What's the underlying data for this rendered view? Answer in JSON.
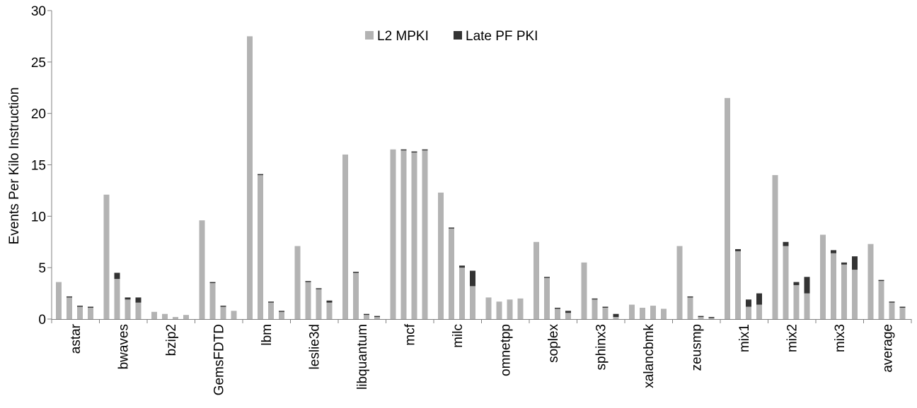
{
  "chart_data": {
    "type": "bar",
    "stacked": true,
    "title": "",
    "xlabel": "",
    "ylabel": "Events Per Kilo Instruction",
    "ylim": [
      0,
      30
    ],
    "yticks": [
      0,
      5,
      10,
      15,
      20,
      25,
      30
    ],
    "grid": false,
    "legend": "top-center",
    "bars_per_category": 4,
    "categories": [
      "astar",
      "bwaves",
      "bzip2",
      "GemsFDTD",
      "lbm",
      "leslie3d",
      "libquantum",
      "mcf",
      "milc",
      "omnetpp",
      "soplex",
      "sphinx3",
      "xalancbmk",
      "zeusmp",
      "mix1",
      "mix2",
      "mix3",
      "average"
    ],
    "series": [
      {
        "name": "L2 MPKI",
        "color": "#b3b3b3",
        "values": [
          [
            3.6,
            2.1,
            1.2,
            1.1
          ],
          [
            12.1,
            3.9,
            1.9,
            1.6
          ],
          [
            0.7,
            0.5,
            0.2,
            0.4
          ],
          [
            9.6,
            3.5,
            1.2,
            0.8
          ],
          [
            27.5,
            14.0,
            1.6,
            0.7
          ],
          [
            7.1,
            3.6,
            2.9,
            1.6
          ],
          [
            16.0,
            4.5,
            0.4,
            0.2
          ],
          [
            16.5,
            16.4,
            16.2,
            16.4
          ],
          [
            12.3,
            8.8,
            5.0,
            3.2
          ],
          [
            2.1,
            1.7,
            1.9,
            2.0
          ],
          [
            7.5,
            4.0,
            1.0,
            0.6
          ],
          [
            5.5,
            1.9,
            1.1,
            0.2
          ],
          [
            1.4,
            1.1,
            1.3,
            1.0
          ],
          [
            7.1,
            2.1,
            0.2,
            0.1
          ],
          [
            21.5,
            6.6,
            1.2,
            1.4
          ],
          [
            14.0,
            7.1,
            3.3,
            2.5
          ],
          [
            8.2,
            6.4,
            5.3,
            4.8
          ],
          [
            7.3,
            3.7,
            1.6,
            1.1
          ]
        ]
      },
      {
        "name": "Late PF PKI",
        "color": "#333333",
        "values": [
          [
            0.0,
            0.1,
            0.1,
            0.1
          ],
          [
            0.0,
            0.6,
            0.2,
            0.5
          ],
          [
            0.0,
            0.0,
            0.0,
            0.0
          ],
          [
            0.0,
            0.1,
            0.1,
            0.0
          ],
          [
            0.0,
            0.1,
            0.1,
            0.1
          ],
          [
            0.0,
            0.1,
            0.1,
            0.2
          ],
          [
            0.0,
            0.1,
            0.1,
            0.1
          ],
          [
            0.0,
            0.1,
            0.1,
            0.1
          ],
          [
            0.0,
            0.1,
            0.2,
            1.5
          ],
          [
            0.0,
            0.0,
            0.0,
            0.0
          ],
          [
            0.0,
            0.1,
            0.1,
            0.2
          ],
          [
            0.0,
            0.1,
            0.1,
            0.3
          ],
          [
            0.0,
            0.0,
            0.0,
            0.0
          ],
          [
            0.0,
            0.1,
            0.1,
            0.1
          ],
          [
            0.0,
            0.2,
            0.7,
            1.1
          ],
          [
            0.0,
            0.4,
            0.3,
            1.6
          ],
          [
            0.0,
            0.3,
            0.2,
            1.3
          ],
          [
            0.0,
            0.1,
            0.1,
            0.1
          ]
        ]
      }
    ]
  }
}
